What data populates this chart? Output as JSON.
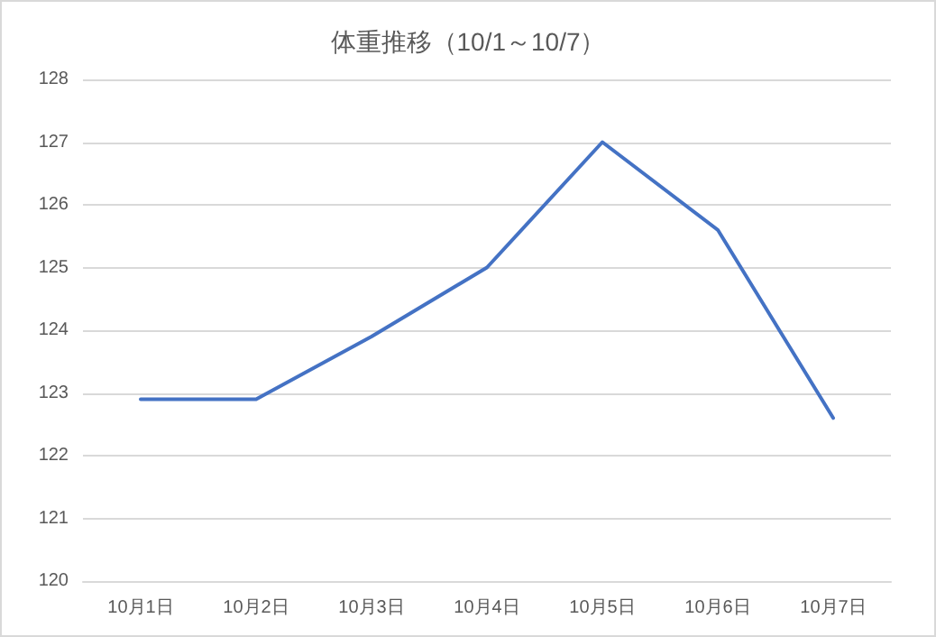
{
  "chart_data": {
    "type": "line",
    "title": "体重推移（10/1～10/7）",
    "categories": [
      "10月1日",
      "10月2日",
      "10月3日",
      "10月4日",
      "10月5日",
      "10月6日",
      "10月7日"
    ],
    "series": [
      {
        "color": "#4472c4",
        "values": [
          122.9,
          122.9,
          123.9,
          125.0,
          127.0,
          125.6,
          122.6
        ]
      }
    ],
    "ylim": [
      120,
      128
    ],
    "yticks": [
      120,
      121,
      122,
      123,
      124,
      125,
      126,
      127,
      128
    ],
    "grid": "y",
    "marker": "none",
    "line_style": "solid"
  }
}
